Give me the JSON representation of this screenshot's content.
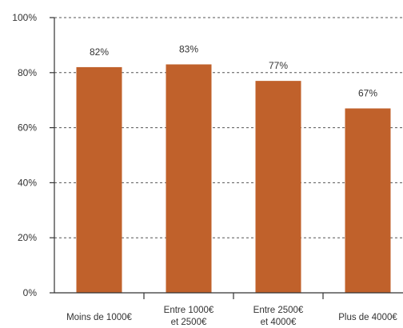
{
  "chart_data": {
    "type": "bar",
    "title": "",
    "xlabel": "",
    "ylabel": "",
    "categories": [
      [
        "Moins de 1000€"
      ],
      [
        "Entre 1000€",
        "et 2500€"
      ],
      [
        "Entre 2500€",
        "et 4000€"
      ],
      [
        "Plus de 4000€"
      ]
    ],
    "values": [
      82,
      83,
      77,
      67
    ],
    "value_labels": [
      "82%",
      "83%",
      "77%",
      "67%"
    ],
    "ylim": [
      0,
      100
    ],
    "yticks": [
      0,
      20,
      40,
      60,
      80,
      100
    ],
    "ytick_labels": [
      "0%",
      "20%",
      "40%",
      "60%",
      "80%",
      "100%"
    ],
    "grid": true,
    "legend": "none",
    "bar_color": "#c0612b"
  }
}
